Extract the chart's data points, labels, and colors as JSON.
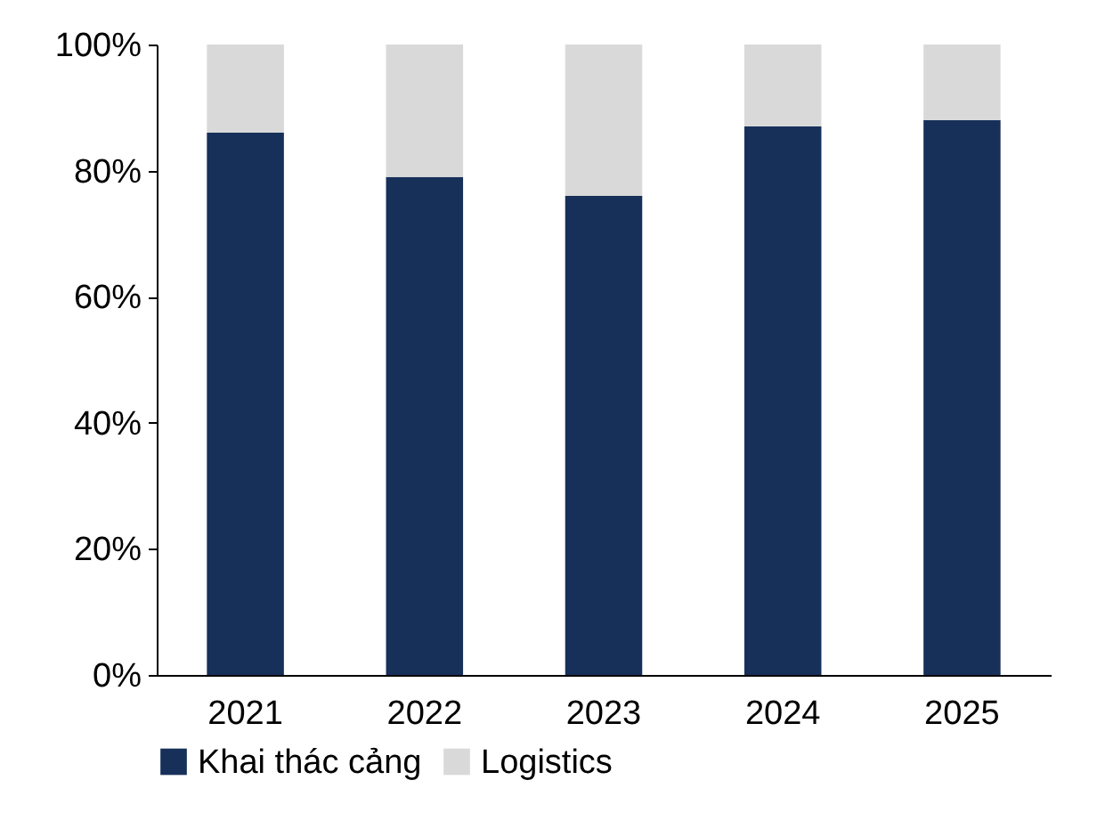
{
  "chart_data": {
    "type": "bar",
    "stacked": true,
    "categories": [
      "2021",
      "2022",
      "2023",
      "2024",
      "2025"
    ],
    "series": [
      {
        "name": "Khai thác cảng",
        "color": "#17305a",
        "values": [
          86,
          79,
          76,
          87,
          88
        ]
      },
      {
        "name": "Logistics",
        "color": "#d9d9d9",
        "values": [
          14,
          21,
          24,
          13,
          12
        ]
      }
    ],
    "ylim": [
      0,
      100
    ],
    "yticks": [
      {
        "value": 0,
        "label": "0%"
      },
      {
        "value": 20,
        "label": "20%"
      },
      {
        "value": 40,
        "label": "40%"
      },
      {
        "value": 60,
        "label": "60%"
      },
      {
        "value": 80,
        "label": "80%"
      },
      {
        "value": 100,
        "label": "100%"
      }
    ],
    "grid": false,
    "legend": "bottom"
  }
}
